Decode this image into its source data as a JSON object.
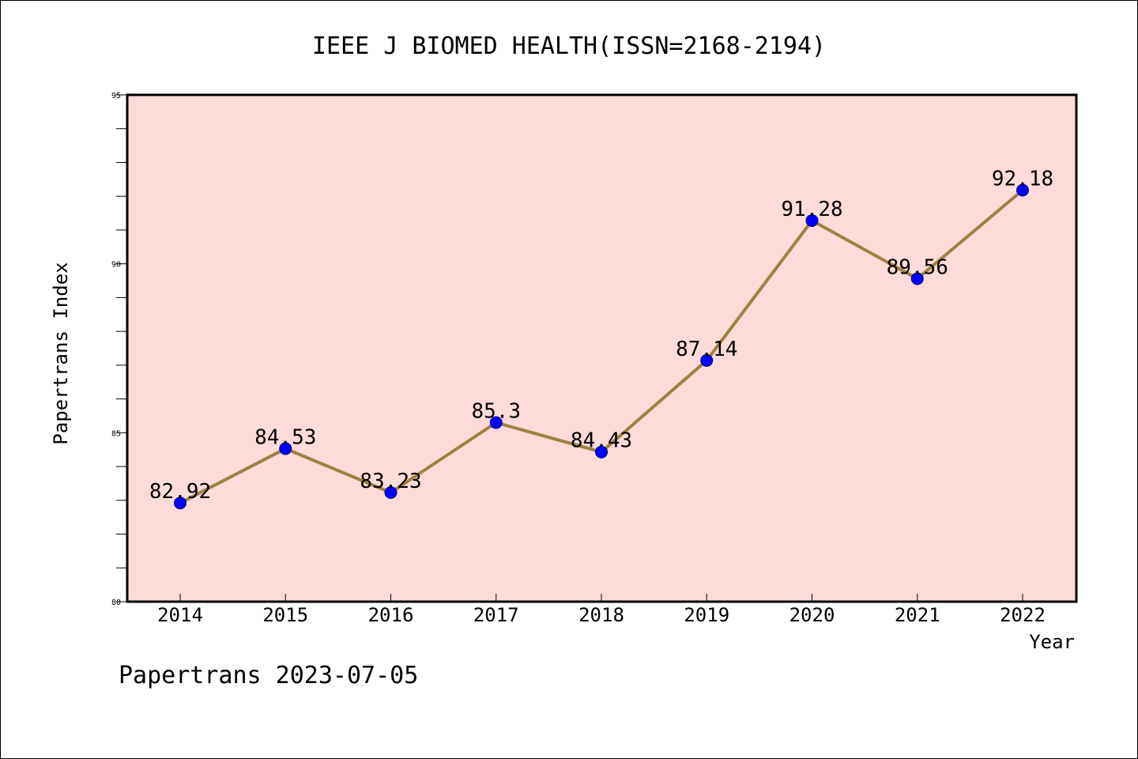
{
  "chart_data": {
    "type": "line",
    "title": "IEEE J BIOMED HEALTH(ISSN=2168-2194)",
    "xlabel": "Year",
    "ylabel": "Papertrans Index",
    "categories": [
      "2014",
      "2015",
      "2016",
      "2017",
      "2018",
      "2019",
      "2020",
      "2021",
      "2022"
    ],
    "series": [
      {
        "values": [
          82.92,
          84.53,
          83.23,
          85.3,
          84.43,
          87.14,
          91.28,
          89.56,
          92.18
        ],
        "labels": [
          "82.92",
          "84.53",
          "83.23",
          "85.3",
          "84.43",
          "87.14",
          "91.28",
          "89.56",
          "92.18"
        ]
      }
    ],
    "ylim": [
      80,
      95
    ],
    "yticks": [
      "80",
      "85",
      "90",
      "95"
    ],
    "y_minor_step": 1,
    "grid": false,
    "legend": "none",
    "colors": {
      "plot_background": "#fddbd9",
      "line": "#a08040",
      "marker": "#0000ff",
      "marker_edge": "#000080",
      "axis": "#000000"
    }
  },
  "footer": {
    "text": "Papertrans 2023-07-05"
  }
}
